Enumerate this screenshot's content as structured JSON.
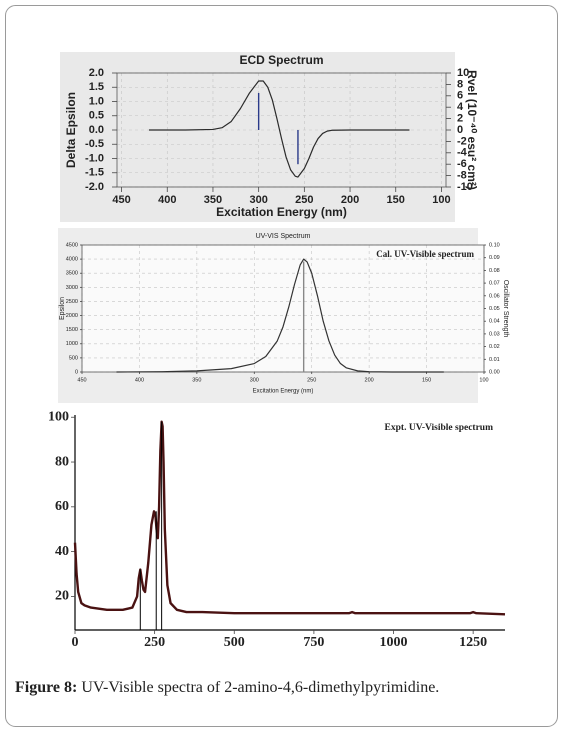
{
  "chart_data": [
    {
      "type": "line",
      "title": "ECD Spectrum",
      "xlabel": "Excitation Energy (nm)",
      "ylabel": "Delta Epsilon",
      "y2label": "Rvel (10⁻⁴⁰ esu² cm²)",
      "xlim": [
        455,
        95
      ],
      "xticks": [
        450,
        400,
        350,
        300,
        250,
        200,
        150,
        100
      ],
      "ylim": [
        -2,
        2
      ],
      "yticks": [
        {
          "value": 2,
          "label": "2.0"
        },
        1.5,
        {
          "value": 1,
          "label": "1.0"
        },
        0.5,
        {
          "value": 0,
          "label": "0.0"
        },
        -0.5,
        {
          "value": -1,
          "label": "-1.0"
        },
        -1.5,
        {
          "value": -2,
          "label": "-2.0"
        }
      ],
      "y2lim": [
        -10,
        10
      ],
      "y2ticks": [
        10,
        8,
        6,
        4,
        2,
        0,
        -2,
        -4,
        -6,
        -8,
        -10
      ],
      "grid": true,
      "series": [
        {
          "style": "line",
          "color": "#2b2b2b",
          "x": [
            420,
            380,
            350,
            340,
            330,
            320,
            310,
            300,
            295,
            290,
            285,
            280,
            275,
            270,
            265,
            260,
            257,
            250,
            245,
            240,
            235,
            230,
            225,
            220,
            200,
            170,
            135
          ],
          "values": [
            0,
            0,
            0.02,
            0.08,
            0.3,
            0.75,
            1.3,
            1.72,
            1.72,
            1.5,
            1.05,
            0.4,
            -0.3,
            -0.95,
            -1.4,
            -1.62,
            -1.65,
            -1.35,
            -1,
            -0.6,
            -0.3,
            -0.12,
            -0.04,
            -0.01,
            0,
            0,
            0
          ]
        },
        {
          "style": "stick",
          "axis": "y2",
          "color": "#2a3a8a",
          "x": [
            300,
            257
          ],
          "values": [
            6.5,
            -6
          ]
        }
      ]
    },
    {
      "type": "line",
      "title": "UV-VIS Spectrum",
      "xlabel": "Excitation Energy (nm)",
      "ylabel": "Epsilon",
      "y2label": "Oscillator Strength",
      "annotation": "Cal. UV-Visible spectrum",
      "xlim": [
        450,
        100
      ],
      "xticks": [
        450,
        400,
        350,
        300,
        250,
        200,
        150,
        100
      ],
      "ylim": [
        0,
        4500
      ],
      "yticks": [
        4500,
        4000,
        3500,
        3000,
        2500,
        2000,
        1500,
        1000,
        500,
        0
      ],
      "y2lim": [
        0,
        0.1
      ],
      "y2ticks": [
        {
          "value": 0.1,
          "label": "0.10"
        },
        0.09,
        0.08,
        0.07,
        0.06,
        0.05,
        0.04,
        0.03,
        0.02,
        0.01,
        {
          "value": 0,
          "label": "0.00"
        }
      ],
      "grid": true,
      "series": [
        {
          "style": "line",
          "color": "#333333",
          "x": [
            420,
            380,
            350,
            320,
            300,
            290,
            280,
            275,
            270,
            265,
            260,
            257,
            254,
            250,
            245,
            240,
            235,
            230,
            225,
            220,
            210,
            200,
            180,
            160,
            135
          ],
          "values": [
            0,
            10,
            40,
            120,
            300,
            550,
            1100,
            1600,
            2300,
            3100,
            3800,
            4000,
            3900,
            3500,
            2700,
            1800,
            1100,
            600,
            300,
            150,
            40,
            10,
            0,
            0,
            0
          ]
        },
        {
          "style": "stick",
          "axis": "y2",
          "color": "#888888",
          "x": [
            257
          ],
          "values": [
            0.087
          ]
        }
      ]
    },
    {
      "type": "line",
      "annotation": "Expt. UV-Visible spectrum",
      "xlim": [
        0,
        1350
      ],
      "xticks": [
        0,
        250,
        500,
        750,
        1000,
        1250
      ],
      "ylim": [
        5,
        101
      ],
      "yticks": [
        20,
        40,
        60,
        80,
        100
      ],
      "grid": false,
      "series": [
        {
          "style": "line",
          "color": "#4a1212",
          "x": [
            0,
            5,
            10,
            20,
            30,
            50,
            100,
            150,
            180,
            195,
            200,
            205,
            210,
            215,
            220,
            230,
            240,
            248,
            252,
            256,
            260,
            264,
            268,
            272,
            275,
            278,
            282,
            290,
            300,
            320,
            350,
            400,
            500,
            700,
            860,
            870,
            880,
            1000,
            1240,
            1250,
            1260,
            1350
          ],
          "values": [
            44,
            30,
            22,
            17,
            16,
            15,
            14,
            14,
            15,
            20,
            28,
            32,
            27,
            23,
            22,
            35,
            52,
            58,
            57,
            50,
            46,
            60,
            85,
            98,
            96,
            80,
            50,
            25,
            17,
            14,
            13,
            13,
            12.5,
            12.5,
            12.5,
            13,
            12.5,
            12.5,
            12.5,
            13,
            12.5,
            12
          ]
        },
        {
          "style": "stick",
          "color": "#000000",
          "x": [
            205,
            255,
            272
          ],
          "values": [
            32,
            58,
            98
          ]
        }
      ]
    }
  ],
  "caption": {
    "label": "Figure 8:",
    "text": "UV-Visible spectra of 2-amino-4,6-dimethylpyrimidine."
  }
}
